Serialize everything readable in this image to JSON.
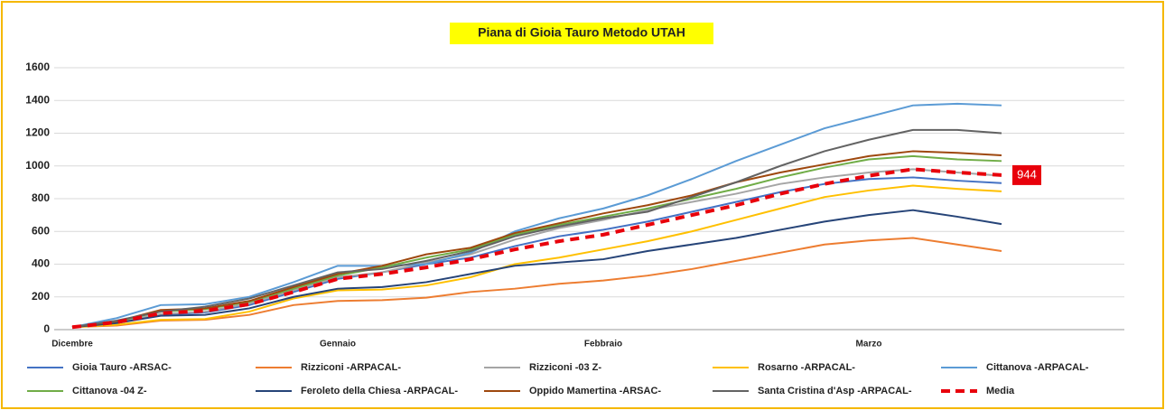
{
  "chart_data": {
    "type": "line",
    "title": "Piana di Gioia Tauro Metodo UTAH",
    "categories": [
      "Dicembre",
      null,
      null,
      null,
      null,
      null,
      "Gennaio",
      null,
      null,
      null,
      null,
      null,
      "Febbraio",
      null,
      null,
      null,
      null,
      null,
      "Marzo",
      null,
      null,
      null
    ],
    "ylim": [
      0,
      1600
    ],
    "yticks": [
      0,
      200,
      400,
      600,
      800,
      1000,
      1200,
      1400,
      1600
    ],
    "grid": true,
    "legend": "bottom",
    "series": [
      {
        "name": "Gioia Tauro -ARSAC-",
        "color": "#4472c4",
        "values": [
          15,
          45,
          90,
          105,
          150,
          230,
          310,
          350,
          400,
          440,
          510,
          570,
          610,
          660,
          720,
          780,
          840,
          890,
          920,
          930,
          910,
          895
        ]
      },
      {
        "name": "Rizziconi -ARPACAL-",
        "color": "#ed7d31",
        "values": [
          15,
          25,
          55,
          60,
          90,
          150,
          175,
          180,
          195,
          230,
          250,
          280,
          300,
          330,
          370,
          420,
          470,
          520,
          545,
          560,
          520,
          480
        ]
      },
      {
        "name": "Rizziconi -03 Z-",
        "color": "#a5a5a5",
        "values": [
          15,
          45,
          95,
          110,
          160,
          240,
          320,
          350,
          410,
          460,
          550,
          620,
          670,
          730,
          780,
          830,
          890,
          930,
          960,
          980,
          960,
          940
        ]
      },
      {
        "name": "Rosarno -ARPACAL-",
        "color": "#ffc000",
        "values": [
          15,
          30,
          60,
          65,
          110,
          190,
          240,
          245,
          270,
          320,
          400,
          440,
          490,
          540,
          600,
          670,
          740,
          810,
          850,
          880,
          860,
          845
        ]
      },
      {
        "name": "Cittanova -ARPACAL-",
        "color": "#5b9bd5",
        "values": [
          15,
          70,
          150,
          155,
          200,
          290,
          390,
          390,
          400,
          470,
          600,
          680,
          740,
          820,
          920,
          1030,
          1130,
          1230,
          1300,
          1370,
          1380,
          1370
        ]
      },
      {
        "name": "Cittanova -04 Z-",
        "color": "#70ad47",
        "values": [
          15,
          50,
          110,
          125,
          170,
          250,
          330,
          380,
          440,
          490,
          580,
          640,
          690,
          740,
          800,
          860,
          930,
          990,
          1040,
          1060,
          1040,
          1030
        ]
      },
      {
        "name": "Feroleto della Chiesa -ARPACAL-",
        "color": "#264478",
        "values": [
          15,
          40,
          85,
          90,
          130,
          200,
          250,
          260,
          290,
          340,
          390,
          410,
          430,
          480,
          520,
          560,
          610,
          660,
          700,
          730,
          690,
          645
        ]
      },
      {
        "name": "Oppido Mamertina -ARSAC-",
        "color": "#9e480e",
        "values": [
          15,
          50,
          120,
          130,
          175,
          260,
          340,
          390,
          460,
          500,
          590,
          650,
          710,
          760,
          820,
          900,
          960,
          1010,
          1060,
          1090,
          1080,
          1065
        ]
      },
      {
        "name": "Santa Cristina d'Asp -ARPACAL-",
        "color": "#636363",
        "values": [
          15,
          55,
          110,
          140,
          190,
          270,
          350,
          370,
          420,
          480,
          570,
          630,
          680,
          720,
          810,
          900,
          1000,
          1090,
          1160,
          1220,
          1220,
          1200
        ]
      },
      {
        "name": "Media",
        "color": "#e8000b",
        "dashed": true,
        "end_label": 944,
        "values": [
          15,
          45,
          100,
          115,
          155,
          230,
          310,
          340,
          380,
          430,
          490,
          540,
          580,
          640,
          700,
          760,
          830,
          890,
          940,
          980,
          960,
          944
        ]
      }
    ]
  }
}
